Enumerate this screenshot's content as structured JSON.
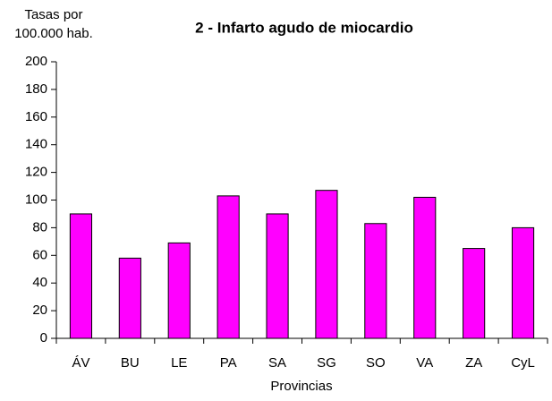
{
  "chart_data": {
    "type": "bar",
    "title": "2 - Infarto agudo de miocardio",
    "ylabel": [
      "Tasas por",
      "100.000 hab."
    ],
    "xlabel": "Provincias",
    "categories": [
      "ÁV",
      "BU",
      "LE",
      "PA",
      "SA",
      "SG",
      "SO",
      "VA",
      "ZA",
      "CyL"
    ],
    "values": [
      90,
      58,
      69,
      103,
      90,
      107,
      83,
      102,
      65,
      80
    ],
    "color": "#ff00ff",
    "ylim": [
      0,
      200
    ],
    "yticks": [
      0,
      20,
      40,
      60,
      80,
      100,
      120,
      140,
      160,
      180,
      200
    ],
    "grid": false
  }
}
